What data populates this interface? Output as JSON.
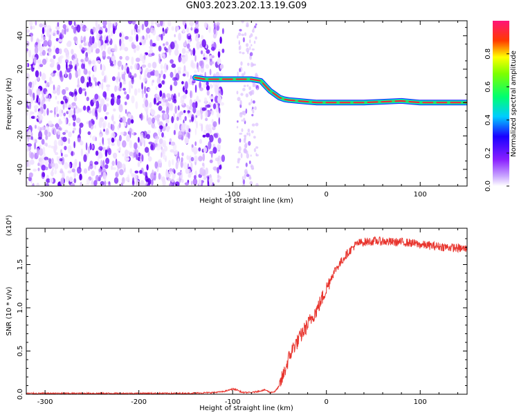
{
  "figure": {
    "title": "GN03.2023.202.13.19.G09"
  },
  "colors": {
    "snr_line": "#e8342d",
    "axis": "#000000",
    "colorbar": [
      "#ffffff",
      "#9b30ff",
      "#2000ff",
      "#00e5ff",
      "#00ff40",
      "#ffff00",
      "#ff0000",
      "#ff1493"
    ]
  },
  "chart_data": [
    {
      "type": "heatmap",
      "title": "",
      "xlabel": "Height of straight line (km)",
      "ylabel": "Frequency (Hz)",
      "xlim": [
        -320,
        150
      ],
      "ylim": [
        -50,
        49
      ],
      "xticks": [
        -300,
        -200,
        -100,
        0,
        100
      ],
      "yticks": [
        -40,
        -20,
        0,
        20,
        40
      ],
      "xtick_labels": [
        "-300",
        "-200",
        "-100",
        "0",
        "100"
      ],
      "ytick_labels": [
        "-40",
        "-20",
        "0",
        "20",
        "40"
      ],
      "noise_region": {
        "x_range": [
          -320,
          -110
        ],
        "freq_range": [
          -50,
          49
        ]
      },
      "signal_track": {
        "x": [
          -140,
          -130,
          -120,
          -110,
          -100,
          -90,
          -80,
          -70,
          -65,
          -60,
          -55,
          -50,
          -45,
          -40,
          -30,
          -20,
          -10,
          0,
          20,
          40,
          60,
          80,
          90,
          100,
          120,
          150
        ],
        "freq": [
          15,
          14,
          14,
          14,
          14,
          14,
          14,
          13,
          10,
          7,
          5,
          3,
          2,
          1.5,
          1,
          0.5,
          0,
          0,
          0,
          0,
          0.5,
          1,
          0.5,
          0,
          0,
          0
        ]
      },
      "colorbar": {
        "label": "Normalized spectral amplitude",
        "range": [
          0,
          1
        ],
        "ticks": [
          "0.0",
          "0.2",
          "0.4",
          "0.6",
          "0.8"
        ]
      }
    },
    {
      "type": "line",
      "title": "",
      "xlabel": "Height of straight line (km)",
      "ylabel": "SNR (10 * v/v)",
      "scale_note": "(x10⁴)",
      "xlim": [
        -320,
        150
      ],
      "ylim": [
        0,
        1.92
      ],
      "xticks": [
        -300,
        -200,
        -100,
        0,
        100
      ],
      "yticks": [
        0.0,
        0.5,
        1.0,
        1.5
      ],
      "xtick_labels": [
        "-300",
        "-200",
        "-100",
        "0",
        "100"
      ],
      "ytick_labels": [
        "0.0",
        "0.5",
        "1.0",
        "1.5"
      ],
      "series": [
        {
          "x": [
            -320,
            -300,
            -250,
            -200,
            -150,
            -120,
            -110,
            -100,
            -95,
            -90,
            -80,
            -70,
            -65,
            -60,
            -55,
            -50,
            -45,
            -40,
            -35,
            -30,
            -25,
            -20,
            -15,
            -10,
            -5,
            0,
            5,
            10,
            15,
            20,
            25,
            30,
            35,
            40,
            50,
            60,
            70,
            80,
            90,
            100,
            110,
            120,
            130,
            140,
            150
          ],
          "y": [
            0.01,
            0.01,
            0.01,
            0.01,
            0.01,
            0.02,
            0.03,
            0.06,
            0.05,
            0.02,
            0.02,
            0.04,
            0.05,
            0.02,
            0.03,
            0.1,
            0.25,
            0.42,
            0.55,
            0.62,
            0.72,
            0.8,
            0.9,
            0.98,
            1.1,
            1.22,
            1.35,
            1.45,
            1.52,
            1.6,
            1.66,
            1.72,
            1.75,
            1.76,
            1.77,
            1.77,
            1.76,
            1.76,
            1.75,
            1.73,
            1.72,
            1.71,
            1.7,
            1.69,
            1.68
          ]
        }
      ]
    }
  ]
}
